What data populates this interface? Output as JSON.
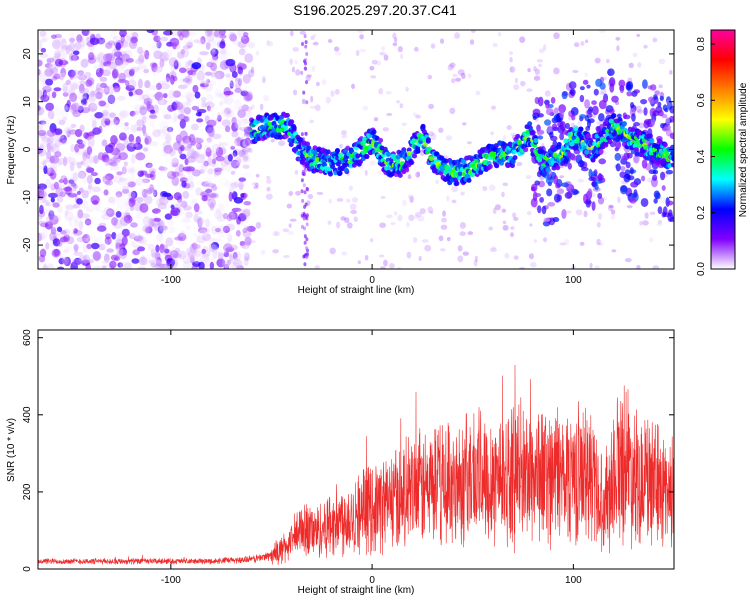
{
  "title": "S196.2025.297.20.37.C41",
  "chart_data": [
    {
      "type": "heatmap",
      "xlabel": "Height of straight line (km)",
      "ylabel": "Frequency (Hz)",
      "xlim": [
        -166,
        150
      ],
      "ylim": [
        -25,
        25
      ],
      "xticks": [
        -100,
        0,
        100
      ],
      "yticks": [
        -20,
        -10,
        0,
        10,
        20
      ],
      "colorbar": {
        "label": "Normalized spectral amplitude",
        "range": [
          0,
          0.85
        ],
        "ticks": [
          "0.0",
          "0.2",
          "0.4",
          "0.6",
          "0.8"
        ],
        "tick_values": [
          0,
          0.2,
          0.4,
          0.6,
          0.8
        ],
        "colors": [
          "#ffffff",
          "#8000ff",
          "#0000ff",
          "#00ffff",
          "#00ff00",
          "#ffff00",
          "#ff8000",
          "#ff0000",
          "#ff00a0"
        ]
      },
      "ridge": {
        "x": [
          -60,
          -50,
          -42,
          -36,
          -30,
          -20,
          -10,
          0,
          8,
          15,
          25,
          30,
          40,
          50,
          60,
          70,
          78,
          85,
          95,
          100,
          110,
          120,
          130,
          140,
          150
        ],
        "freq_hz": [
          4,
          5,
          5,
          0,
          -2,
          -3,
          -2,
          2,
          -3,
          -3,
          3,
          -2,
          -5,
          -4,
          -1,
          -1,
          3,
          -3,
          -1,
          3,
          0,
          5,
          2,
          0,
          -2
        ]
      }
    },
    {
      "type": "line",
      "xlabel": "Height of straight line (km)",
      "ylabel": "SNR (10 * v/v)",
      "xlim": [
        -166,
        150
      ],
      "ylim": [
        0,
        620
      ],
      "xticks": [
        -100,
        0,
        100
      ],
      "yticks": [
        0,
        200,
        400,
        600
      ],
      "color": "#ee2b2b",
      "series": [
        {
          "name": "SNR",
          "x": [
            -166,
            -120,
            -80,
            -60,
            -50,
            -42,
            -37,
            -33,
            -28,
            -20,
            -10,
            0,
            10,
            20,
            30,
            40,
            50,
            60,
            70,
            80,
            90,
            100,
            110,
            115,
            120,
            125,
            130,
            140,
            150
          ],
          "y": [
            20,
            20,
            20,
            25,
            35,
            60,
            90,
            110,
            95,
            120,
            140,
            160,
            180,
            200,
            215,
            225,
            240,
            245,
            240,
            250,
            245,
            250,
            240,
            160,
            250,
            300,
            250,
            220,
            200
          ]
        }
      ]
    }
  ]
}
